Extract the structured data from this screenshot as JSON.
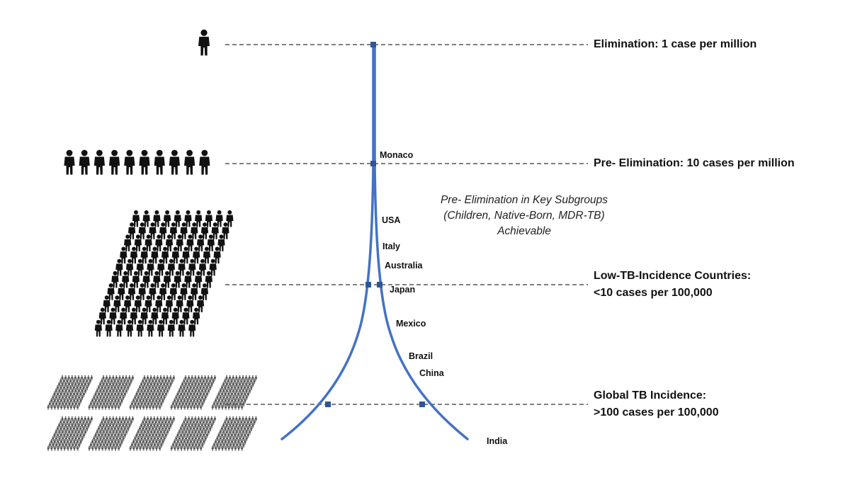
{
  "levels": [
    {
      "key": "elimination",
      "label": "Elimination: 1 case per million",
      "people": 1
    },
    {
      "key": "pre_elimination",
      "label": "Pre- Elimination: 10 cases per million",
      "people": 10
    },
    {
      "key": "low_incidence",
      "label_line1": "Low-TB-Incidence Countries:",
      "label_line2": "<10 cases per 100,000",
      "people": 100
    },
    {
      "key": "global",
      "label_line1": "Global TB Incidence:",
      "label_line2": ">100 cases per 100,000",
      "people": 1000
    }
  ],
  "note": {
    "line1": "Pre- Elimination in Key Subgroups",
    "line2": "(Children, Native-Born, MDR-TB)",
    "line3": "Achievable"
  },
  "countries": [
    "Monaco",
    "USA",
    "Italy",
    "Australia",
    "Japan",
    "Mexico",
    "Brazil",
    "China",
    "India"
  ],
  "colors": {
    "curve": "#4472c4",
    "marker": "#2f5597",
    "people_dark": "#111111",
    "people_gray": "#555555",
    "dash": "#333333"
  },
  "icons": {
    "person": "person-icon"
  }
}
